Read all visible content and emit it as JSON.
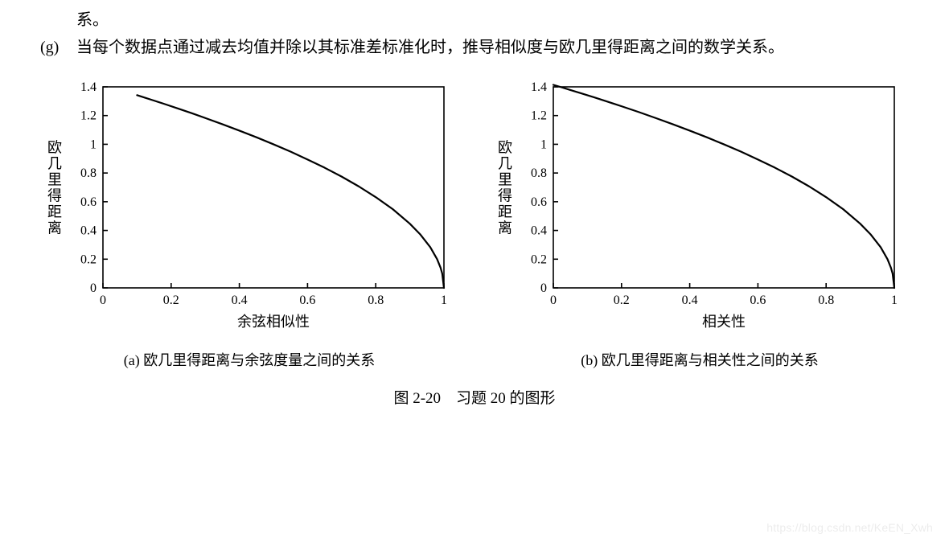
{
  "text": {
    "line1": "系。",
    "itemG_marker": "(g)",
    "itemG_body": "当每个数据点通过减去均值并除以其标准差标准化时，推导相似度与欧几里得距离之间的数学关系。",
    "sub_a": "(a) 欧几里得距离与余弦度量之间的关系",
    "sub_b": "(b) 欧几里得距离与相关性之间的关系",
    "fig_caption": "图 2-20　习题 20 的图形",
    "watermark": "https://blog.csdn.net/KeEN_Xwh"
  },
  "chart_a": {
    "type": "line",
    "xlabel": "余弦相似性",
    "ylabel": "欧几里得距离",
    "xlim": [
      0,
      1
    ],
    "ylim": [
      0,
      1.4
    ],
    "xticks": [
      0,
      0.2,
      0.4,
      0.6,
      0.8,
      1
    ],
    "yticks": [
      0,
      0.2,
      0.4,
      0.6,
      0.8,
      1,
      1.2,
      1.4
    ],
    "x_tick_labels": [
      "0",
      "0.2",
      "0.4",
      "0.6",
      "0.8",
      "1"
    ],
    "y_tick_labels": [
      "0",
      "0.2",
      "0.4",
      "0.6",
      "0.8",
      "1",
      "1.2",
      "1.4"
    ],
    "series": [
      {
        "x": [
          0.1,
          0.12,
          0.15,
          0.18,
          0.22,
          0.26,
          0.3,
          0.35,
          0.4,
          0.45,
          0.5,
          0.55,
          0.6,
          0.65,
          0.7,
          0.75,
          0.8,
          0.85,
          0.9,
          0.93,
          0.96,
          0.98,
          0.99,
          0.995,
          1.0
        ],
        "y": [
          1.342,
          1.327,
          1.304,
          1.281,
          1.249,
          1.217,
          1.183,
          1.14,
          1.095,
          1.049,
          1.0,
          0.949,
          0.894,
          0.837,
          0.775,
          0.707,
          0.632,
          0.548,
          0.447,
          0.374,
          0.283,
          0.2,
          0.141,
          0.1,
          0.0
        ],
        "color": "#000000",
        "line_width": 2.2
      }
    ],
    "axis_color": "#000000",
    "axis_width": 1.6,
    "tick_length": 6,
    "background_color": "#ffffff",
    "tick_font_size": 16,
    "label_font_size": 18
  },
  "chart_b": {
    "type": "line",
    "xlabel": "相关性",
    "ylabel": "欧几里得距离",
    "xlim": [
      0,
      1
    ],
    "ylim": [
      0,
      1.4
    ],
    "xticks": [
      0,
      0.2,
      0.4,
      0.6,
      0.8,
      1
    ],
    "yticks": [
      0,
      0.2,
      0.4,
      0.6,
      0.8,
      1,
      1.2,
      1.4
    ],
    "x_tick_labels": [
      "0",
      "0.2",
      "0.4",
      "0.6",
      "0.8",
      "1"
    ],
    "y_tick_labels": [
      "0",
      "0.2",
      "0.4",
      "0.6",
      "0.8",
      "1",
      "1.2",
      "1.4"
    ],
    "series": [
      {
        "x": [
          0.0,
          0.02,
          0.05,
          0.08,
          0.12,
          0.16,
          0.2,
          0.25,
          0.3,
          0.35,
          0.4,
          0.45,
          0.5,
          0.55,
          0.6,
          0.65,
          0.7,
          0.75,
          0.8,
          0.85,
          0.9,
          0.93,
          0.96,
          0.98,
          0.99,
          0.995,
          1.0
        ],
        "y": [
          1.414,
          1.4,
          1.378,
          1.356,
          1.327,
          1.296,
          1.265,
          1.225,
          1.183,
          1.14,
          1.095,
          1.049,
          1.0,
          0.949,
          0.894,
          0.837,
          0.775,
          0.707,
          0.632,
          0.548,
          0.447,
          0.374,
          0.283,
          0.2,
          0.141,
          0.1,
          0.0
        ],
        "color": "#000000",
        "line_width": 2.2
      }
    ],
    "axis_color": "#000000",
    "axis_width": 1.6,
    "tick_length": 6,
    "background_color": "#ffffff",
    "tick_font_size": 16,
    "label_font_size": 18
  }
}
